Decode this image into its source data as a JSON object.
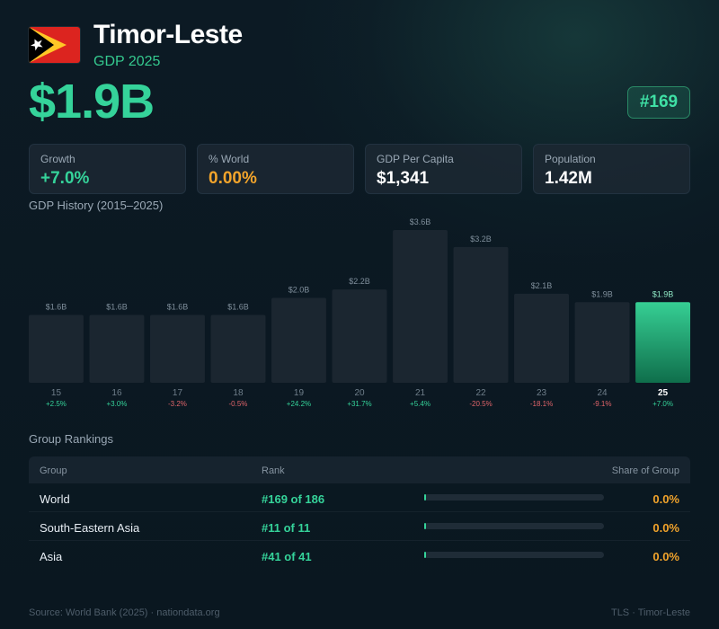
{
  "header": {
    "country": "Timor-Leste",
    "subtitle": "GDP 2025",
    "gdp_value": "$1.9B",
    "rank_badge": "#169",
    "flag_icon": "timor-leste-flag"
  },
  "stats": [
    {
      "label": "Growth",
      "value": "+7.0%",
      "tone": "green"
    },
    {
      "label": "% World",
      "value": "0.00%",
      "tone": "orange"
    },
    {
      "label": "GDP Per Capita",
      "value": "$1,341",
      "tone": "white"
    },
    {
      "label": "Population",
      "value": "1.42M",
      "tone": "white"
    }
  ],
  "chart_title": "GDP History (2015–2025)",
  "chart_data": {
    "type": "bar",
    "categories": [
      "15",
      "16",
      "17",
      "18",
      "19",
      "20",
      "21",
      "22",
      "23",
      "24",
      "25"
    ],
    "values": [
      1.6,
      1.6,
      1.6,
      1.6,
      2.0,
      2.2,
      3.6,
      3.2,
      2.1,
      1.9,
      1.9
    ],
    "value_labels": [
      "$1.6B",
      "$1.6B",
      "$1.6B",
      "$1.6B",
      "$2.0B",
      "$2.2B",
      "$3.6B",
      "$3.2B",
      "$2.1B",
      "$1.9B",
      "$1.9B"
    ],
    "growth_labels": [
      "+2.5%",
      "+3.0%",
      "-3.2%",
      "-0.5%",
      "+24.2%",
      "+31.7%",
      "+5.4%",
      "-20.5%",
      "-18.1%",
      "-9.1%",
      "+7.0%"
    ],
    "highlight_index": 10,
    "ylim": [
      0,
      3.6
    ],
    "colors": {
      "bar": "#1b2630",
      "highlight_top": "#36cf94",
      "highlight_bottom": "#0f6e4b",
      "positive": "#35d39a",
      "negative": "#e0646a"
    }
  },
  "rankings": {
    "title": "Group Rankings",
    "headers": {
      "group": "Group",
      "rank": "Rank",
      "share": "Share of Group"
    },
    "rows": [
      {
        "group": "World",
        "rank": "#169 of 186",
        "share": "0.0%"
      },
      {
        "group": "South-Eastern Asia",
        "rank": "#11 of 11",
        "share": "0.0%"
      },
      {
        "group": "Asia",
        "rank": "#41 of 41",
        "share": "0.0%"
      }
    ]
  },
  "footer": {
    "source": "Source: World Bank (2025) · nationdata.org",
    "code": "TLS · Timor-Leste"
  }
}
